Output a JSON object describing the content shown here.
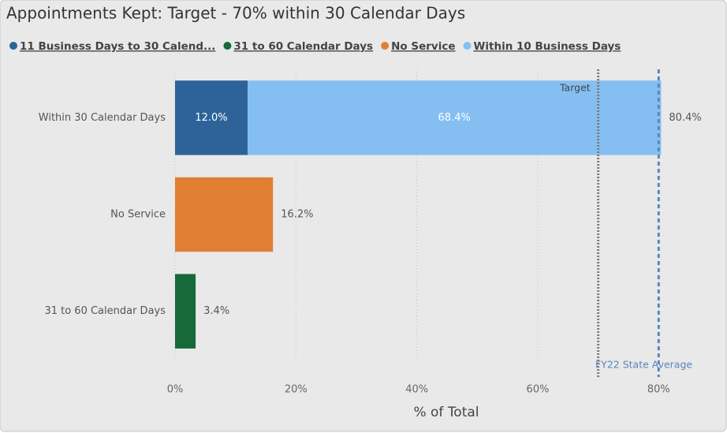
{
  "chart_data": {
    "type": "stacked_bar_horizontal",
    "title": "Appointments Kept: Target - 70% within 30 Calendar Days",
    "categories": [
      "Within 30 Calendar Days",
      "No Service",
      "31 to 60 Calendar Days"
    ],
    "series": [
      {
        "name": "11 Business Days to 30 Calend...",
        "color": "#2e6399",
        "values": [
          12.0,
          null,
          null
        ],
        "value_labels": [
          "12.0%",
          null,
          null
        ]
      },
      {
        "name": "31 to 60 Calendar Days",
        "color": "#17693a",
        "values": [
          null,
          null,
          3.4
        ],
        "value_labels": [
          null,
          null,
          null
        ]
      },
      {
        "name": "No Service",
        "color": "#e07f34",
        "values": [
          null,
          16.2,
          null
        ],
        "value_labels": [
          null,
          null,
          null
        ]
      },
      {
        "name": "Within 10 Business Days",
        "color": "#85bff2",
        "values": [
          68.4,
          null,
          null
        ],
        "value_labels": [
          "68.4%",
          null,
          null
        ]
      }
    ],
    "stack_order": [
      0,
      3,
      1,
      2
    ],
    "totals": {
      "values": [
        80.4,
        16.2,
        3.4
      ],
      "value_labels": [
        "80.4%",
        "16.2%",
        "3.4%"
      ]
    },
    "reference_lines": [
      {
        "label": "Target",
        "value": 70,
        "color": "#7a7a7a"
      },
      {
        "label": "FY22 State Average",
        "value": 80,
        "color": "#5a86bd"
      }
    ],
    "xlim": [
      0,
      90
    ],
    "xticks": [
      {
        "value": 0,
        "label": "0%"
      },
      {
        "value": 20,
        "label": "20%"
      },
      {
        "value": 40,
        "label": "40%"
      },
      {
        "value": 60,
        "label": "60%"
      },
      {
        "value": 80,
        "label": "80%"
      }
    ],
    "x_label": "% of Total",
    "grid": true,
    "legend": "top-left"
  }
}
